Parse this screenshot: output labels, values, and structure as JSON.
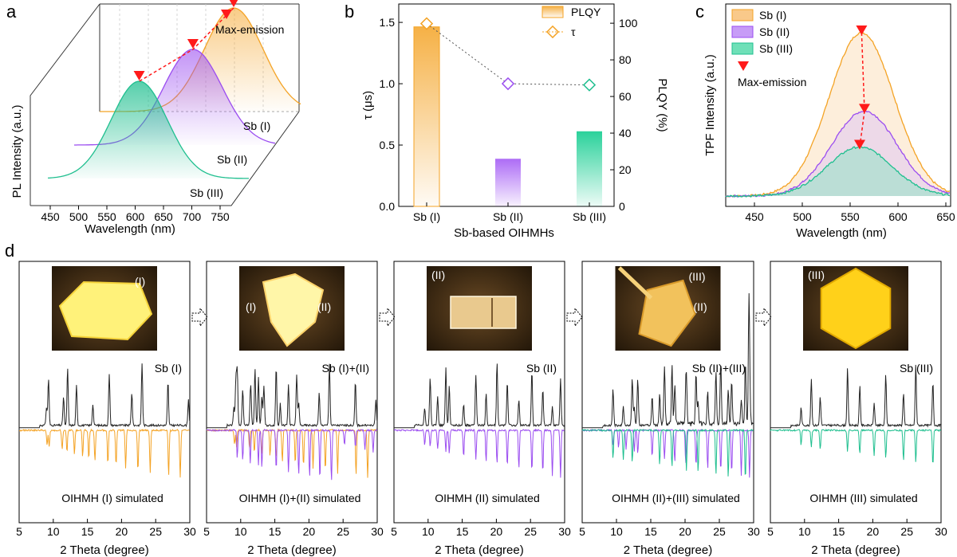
{
  "colors": {
    "sb1": "#f4a325",
    "sb2": "#9b4df0",
    "sb3": "#1fbf8f",
    "marker": "#ff1a1a",
    "tau": "#555555",
    "frame": "#000000"
  },
  "panel_a": {
    "letter": "a",
    "ylabel": "PL Intensity (a.u.)",
    "xlabel": "Wavelength (nm)",
    "xticks": [
      "450",
      "500",
      "550",
      "600",
      "650",
      "700",
      "750"
    ],
    "legend_marker_label": "Max-emission",
    "curve_labels": [
      "Sb (I)",
      "Sb (II)",
      "Sb (III)"
    ]
  },
  "panel_b": {
    "letter": "b",
    "xlabel": "Sb-based OIHMHs",
    "ylabel_left": "τ (μs)",
    "ylabel_right": "PLQY (%)",
    "yticks_left": [
      "0.0",
      "0.5",
      "1.0",
      "1.5"
    ],
    "yticks_right": [
      "0",
      "20",
      "40",
      "60",
      "80",
      "100"
    ],
    "legend": [
      "PLQY",
      "τ"
    ]
  },
  "panel_c": {
    "letter": "c",
    "ylabel": "TPF Intensity (a.u.)",
    "xlabel": "Wavelength (nm)",
    "xticks": [
      "450",
      "500",
      "550",
      "600",
      "650"
    ],
    "legend": [
      "Sb (I)",
      "Sb (II)",
      "Sb (III)",
      "Max-emission"
    ]
  },
  "panel_d": {
    "letter": "d",
    "xlabel": "2 Theta (degree)",
    "xticks": [
      "5",
      "10",
      "15",
      "20",
      "25",
      "30"
    ],
    "subpanels": [
      {
        "top": "Sb (I)",
        "bottom": "OIHMH (I) simulated",
        "photo_labels": [
          "(I)"
        ]
      },
      {
        "top": "Sb (I)+(II)",
        "bottom": "OIHMH (I)+(II) simulated",
        "photo_labels": [
          "(I)",
          "(II)"
        ]
      },
      {
        "top": "Sb (II)",
        "bottom": "OIHMH (II) simulated",
        "photo_labels": [
          "(II)"
        ]
      },
      {
        "top": "Sb (II)+(III)",
        "bottom": "OIHMH (II)+(III) simulated",
        "photo_labels": [
          "(III)",
          "(II)"
        ]
      },
      {
        "top": "Sb (III)",
        "bottom": "OIHMH (III) simulated",
        "photo_labels": [
          "(III)"
        ]
      }
    ]
  },
  "chart_data": [
    {
      "type": "line",
      "panel": "a",
      "xlabel": "Wavelength (nm)",
      "ylabel": "PL Intensity (a.u.)",
      "xlim": [
        430,
        760
      ],
      "series": [
        {
          "name": "Sb (I)",
          "peak_x": 650
        },
        {
          "name": "Sb (II)",
          "peak_x": 625
        },
        {
          "name": "Sb (III)",
          "peak_x": 580
        }
      ]
    },
    {
      "type": "bar",
      "panel": "b",
      "categories": [
        "Sb (I)",
        "Sb (II)",
        "Sb (III)"
      ],
      "xlabel": "Sb-based OIHMHs",
      "series": [
        {
          "name": "PLQY",
          "axis": "right",
          "values": [
            98,
            26,
            41
          ]
        },
        {
          "name": "τ",
          "axis": "left",
          "values": [
            1.49,
            1.0,
            0.99
          ]
        }
      ],
      "ylim_left": [
        0,
        1.65
      ],
      "ylim_right": [
        0,
        100
      ]
    },
    {
      "type": "area",
      "panel": "c",
      "xlabel": "Wavelength (nm)",
      "ylabel": "TPF Intensity (a.u.)",
      "xlim": [
        420,
        655
      ],
      "series": [
        {
          "name": "Sb (I)",
          "peak_x": 562,
          "peak_y": 1.0
        },
        {
          "name": "Sb (II)",
          "peak_x": 565,
          "peak_y": 0.52
        },
        {
          "name": "Sb (III)",
          "peak_x": 560,
          "peak_y": 0.3
        }
      ]
    },
    {
      "type": "line",
      "panel": "d",
      "xlabel": "2 Theta (degree)",
      "xlim": [
        5,
        30
      ],
      "series": [
        {
          "name": "Sb (I)",
          "peaks": [
            9.0,
            9.3,
            11.5,
            12.1,
            13.4,
            15.8,
            18.2,
            21.5,
            23.0,
            26.8,
            29.8
          ]
        },
        {
          "name": "OIHMH (I) simulated",
          "peaks": [
            9.1,
            9.4,
            11.3,
            12.0,
            13.1,
            14.3,
            15.2,
            16.1,
            18.0,
            19.2,
            20.6,
            22.4,
            24.2,
            26.9,
            28.6
          ]
        },
        {
          "name": "OIHMH (II) simulated",
          "peaks": [
            9.5,
            10.3,
            11.4,
            12.6,
            13.1,
            15.2,
            17.0,
            18.5,
            20.1,
            21.6,
            23.3,
            25.2,
            26.8,
            28.2,
            29.4
          ]
        },
        {
          "name": "OIHMH (III) simulated",
          "peaks": [
            9.5,
            11.0,
            12.3,
            16.3,
            18.1,
            20.2,
            21.9,
            24.5,
            26.3,
            28.8
          ]
        }
      ]
    }
  ]
}
